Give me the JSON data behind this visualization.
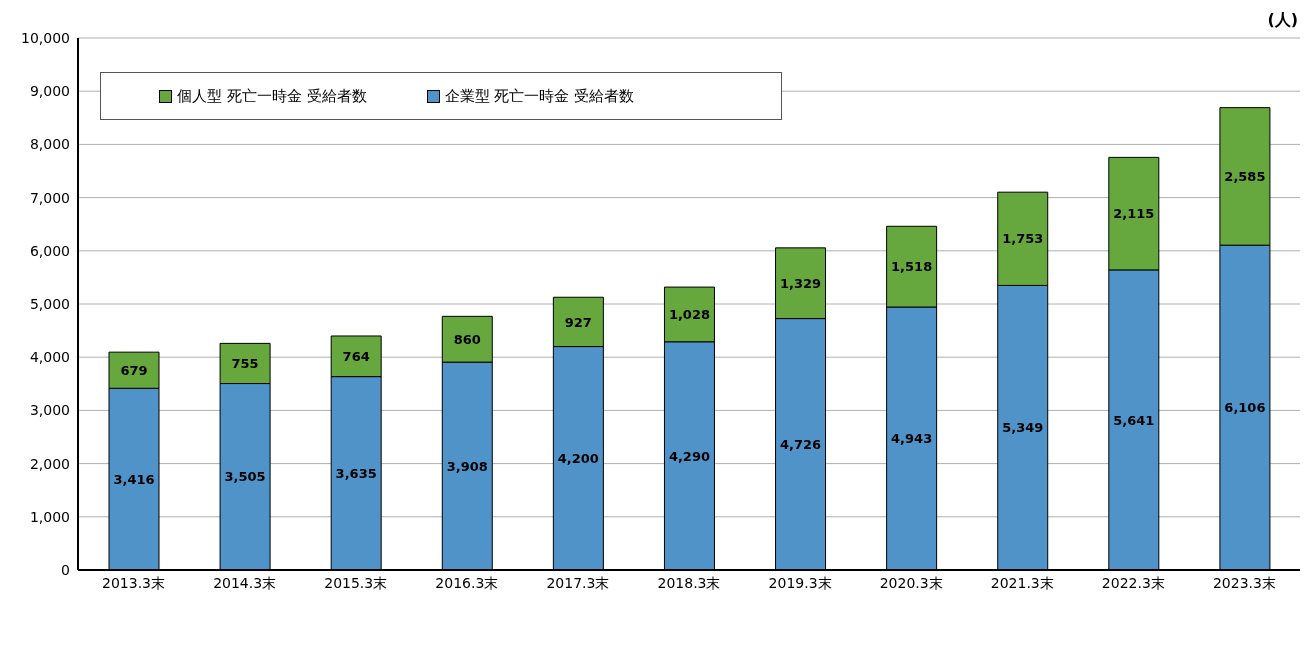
{
  "chart_data": {
    "type": "bar",
    "stacked": true,
    "ylabel": "(人)",
    "categories": [
      "2013.3末",
      "2014.3末",
      "2015.3末",
      "2016.3末",
      "2017.3末",
      "2018.3末",
      "2019.3末",
      "2020.3末",
      "2021.3末",
      "2022.3末",
      "2023.3末"
    ],
    "series": [
      {
        "name": "企業型 死亡一時金 受給者数",
        "color": "#4f93c9",
        "values": [
          3416,
          3505,
          3635,
          3908,
          4200,
          4290,
          4726,
          4943,
          5349,
          5641,
          6106
        ],
        "value_labels": [
          "3,416",
          "3,505",
          "3,635",
          "3,908",
          "4,200",
          "4,290",
          "4,726",
          "4,943",
          "5,349",
          "5,641",
          "6,106"
        ]
      },
      {
        "name": "個人型 死亡一時金 受給者数",
        "color": "#67a83e",
        "values": [
          679,
          755,
          764,
          860,
          927,
          1028,
          1329,
          1518,
          1753,
          2115,
          2585
        ],
        "value_labels": [
          "679",
          "755",
          "764",
          "860",
          "927",
          "1,028",
          "1,329",
          "1,518",
          "1,753",
          "2,115",
          "2,585"
        ]
      }
    ],
    "ylim": [
      0,
      10000
    ],
    "yticks": [
      0,
      {
        "value": 1000,
        "label": "1,000"
      },
      {
        "value": 2000,
        "label": "2,000"
      },
      {
        "value": 3000,
        "label": "3,000"
      },
      {
        "value": 4000,
        "label": "4,000"
      },
      {
        "value": 5000,
        "label": "5,000"
      },
      {
        "value": 6000,
        "label": "6,000"
      },
      {
        "value": 7000,
        "label": "7,000"
      },
      {
        "value": 8000,
        "label": "8,000"
      },
      {
        "value": 9000,
        "label": "9,000"
      },
      {
        "value": 10000,
        "label": "10,000"
      }
    ],
    "grid": "y",
    "legend": "top left"
  }
}
